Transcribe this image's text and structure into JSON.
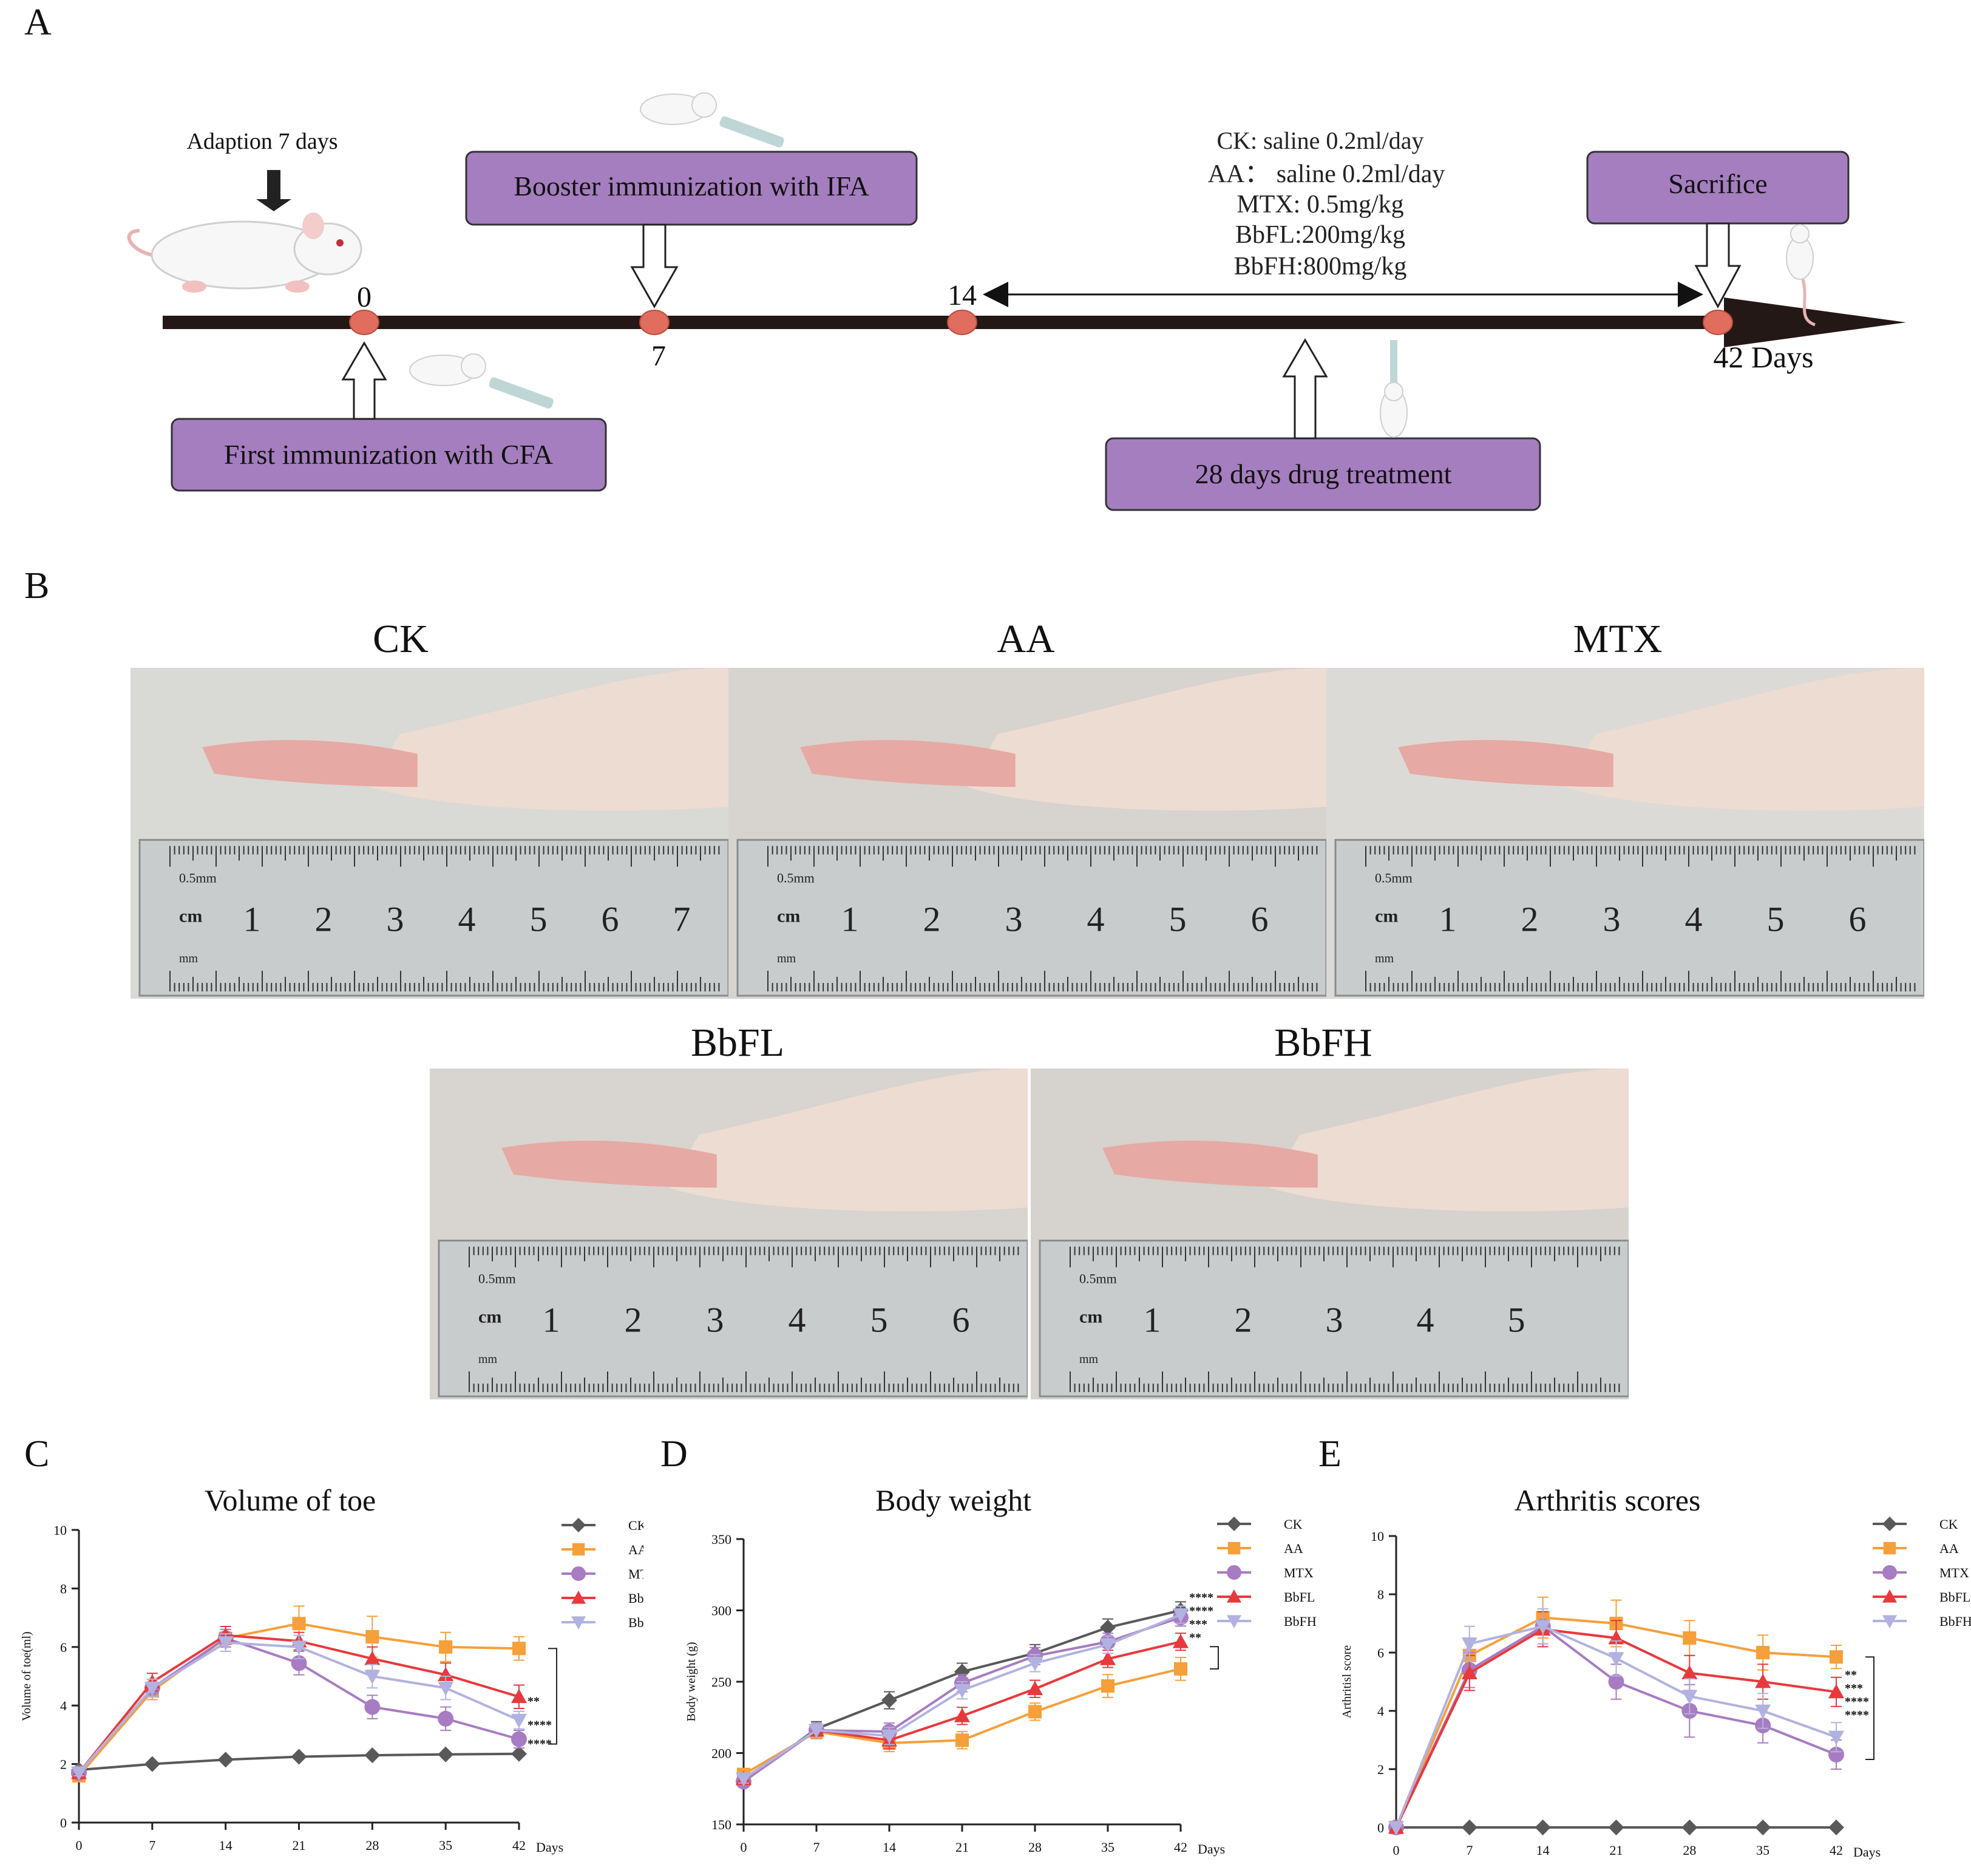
{
  "panels": {
    "A": "A",
    "B": "B",
    "C": "C",
    "D": "D",
    "E": "E"
  },
  "timeline": {
    "adaption": "Adaption 7 days",
    "booster": "Booster immunization with IFA",
    "first": "First immunization with CFA",
    "treatment_box": "28 days drug treatment",
    "sacrifice": "Sacrifice",
    "day0": "0",
    "day7": "7",
    "day14": "14",
    "day42": "42 Days",
    "dosing": [
      "CK: saline 0.2ml/day",
      "AA： saline 0.2ml/day",
      "MTX: 0.5mg/kg",
      "BbFL:200mg/kg",
      "BbFH:800mg/kg"
    ],
    "colors": {
      "box": "#a57ebf",
      "node": "#e06d5e",
      "axis": "#231815"
    }
  },
  "photos": {
    "labels": [
      "CK",
      "AA",
      "MTX",
      "BbFL",
      "BbFH"
    ],
    "ruler": {
      "unit": "cm",
      "small_label": "0.5mm",
      "mm_label": "mm"
    },
    "ruler_numbers": [
      [
        "1",
        "2",
        "3",
        "4",
        "5",
        "6",
        "7"
      ],
      [
        "1",
        "2",
        "3",
        "4",
        "5",
        "6"
      ],
      [
        "1",
        "2",
        "3",
        "4",
        "5",
        "6"
      ],
      [
        "1",
        "2",
        "3",
        "4",
        "5",
        "6"
      ],
      [
        "1",
        "2",
        "3",
        "4",
        "5"
      ]
    ]
  },
  "chart_data": [
    {
      "type": "line",
      "title": "Volume of toe",
      "ylabel": "Volume of toe(ml)",
      "xlabel": "Days",
      "x": [
        0,
        7,
        14,
        21,
        28,
        35,
        42
      ],
      "ylim": [
        0,
        10
      ],
      "yticks": [
        0,
        2,
        4,
        6,
        8,
        10
      ],
      "series": [
        {
          "name": "CK",
          "color": "#595959",
          "marker": "diamond",
          "values": [
            1.8,
            2.0,
            2.15,
            2.25,
            2.3,
            2.33,
            2.35
          ],
          "err": [
            0.05,
            0.05,
            0.05,
            0.05,
            0.05,
            0.05,
            0.05
          ]
        },
        {
          "name": "AA",
          "color": "#f5a03a",
          "marker": "square",
          "values": [
            1.6,
            4.5,
            6.3,
            6.8,
            6.35,
            6.0,
            5.95
          ],
          "err": [
            0.1,
            0.3,
            0.3,
            0.6,
            0.7,
            0.5,
            0.4
          ]
        },
        {
          "name": "MTX",
          "color": "#a77cc2",
          "marker": "circle",
          "values": [
            1.7,
            4.6,
            6.3,
            5.45,
            3.95,
            3.55,
            2.85
          ],
          "err": [
            0.1,
            0.3,
            0.3,
            0.4,
            0.4,
            0.4,
            0.3
          ]
        },
        {
          "name": "BbFL",
          "color": "#e8393d",
          "marker": "triangle",
          "values": [
            1.7,
            4.8,
            6.4,
            6.2,
            5.6,
            5.05,
            4.3
          ],
          "err": [
            0.1,
            0.3,
            0.3,
            0.3,
            0.4,
            0.4,
            0.4
          ]
        },
        {
          "name": "BbFH",
          "color": "#b2b2e0",
          "marker": "invtriangle",
          "values": [
            1.7,
            4.6,
            6.15,
            6.0,
            5.0,
            4.6,
            3.5
          ],
          "err": [
            0.1,
            0.3,
            0.3,
            0.4,
            0.4,
            0.4,
            0.3
          ]
        }
      ],
      "sig": [
        "**",
        "****",
        "****"
      ]
    },
    {
      "type": "line",
      "title": "Body weight",
      "ylabel": "Body weight (g)",
      "xlabel": "Days",
      "x": [
        0,
        7,
        14,
        21,
        28,
        35,
        42
      ],
      "ylim": [
        150,
        350
      ],
      "yticks": [
        150,
        200,
        250,
        300,
        350
      ],
      "series": [
        {
          "name": "CK",
          "color": "#595959",
          "marker": "diamond",
          "values": [
            180,
            217,
            237,
            257,
            270,
            288,
            300
          ],
          "err": [
            3,
            5,
            6,
            6,
            6,
            6,
            6
          ]
        },
        {
          "name": "AA",
          "color": "#f5a03a",
          "marker": "square",
          "values": [
            185,
            215,
            207,
            209,
            229,
            247,
            259
          ],
          "err": [
            3,
            5,
            6,
            6,
            6,
            8,
            8
          ]
        },
        {
          "name": "MTX",
          "color": "#a77cc2",
          "marker": "circle",
          "values": [
            180,
            216,
            215,
            249,
            268,
            278,
            295
          ],
          "err": [
            3,
            5,
            6,
            6,
            6,
            6,
            6
          ]
        },
        {
          "name": "BbFL",
          "color": "#e8393d",
          "marker": "triangle",
          "values": [
            182,
            216,
            209,
            226,
            245,
            266,
            278
          ],
          "err": [
            3,
            5,
            6,
            6,
            6,
            6,
            6
          ]
        },
        {
          "name": "BbFH",
          "color": "#b2b2e0",
          "marker": "invtriangle",
          "values": [
            182,
            216,
            212,
            244,
            263,
            276,
            297
          ],
          "err": [
            3,
            5,
            6,
            6,
            6,
            6,
            6
          ]
        }
      ],
      "sig": [
        "****",
        "****",
        "***",
        "**"
      ]
    },
    {
      "type": "line",
      "title": "Arthritis scores",
      "ylabel": "Arthritisl score",
      "xlabel": "Days",
      "x": [
        0,
        7,
        14,
        21,
        28,
        35,
        42
      ],
      "ylim": [
        0,
        10
      ],
      "yticks": [
        0,
        2,
        4,
        6,
        8,
        10
      ],
      "series": [
        {
          "name": "CK",
          "color": "#595959",
          "marker": "diamond",
          "values": [
            0,
            0,
            0,
            0,
            0,
            0,
            0
          ],
          "err": [
            0,
            0,
            0,
            0,
            0,
            0,
            0
          ]
        },
        {
          "name": "AA",
          "color": "#f5a03a",
          "marker": "square",
          "values": [
            0,
            5.9,
            7.2,
            7.0,
            6.5,
            6.0,
            5.85
          ],
          "err": [
            0,
            0.6,
            0.7,
            0.8,
            0.6,
            0.6,
            0.4
          ]
        },
        {
          "name": "MTX",
          "color": "#a77cc2",
          "marker": "circle",
          "values": [
            0,
            5.4,
            6.9,
            5.0,
            4.0,
            3.5,
            2.5
          ],
          "err": [
            0,
            0.6,
            0.6,
            0.6,
            0.9,
            0.6,
            0.5
          ]
        },
        {
          "name": "BbFL",
          "color": "#e8393d",
          "marker": "triangle",
          "values": [
            0,
            5.3,
            6.8,
            6.5,
            5.3,
            5.0,
            4.65
          ],
          "err": [
            0,
            0.6,
            0.6,
            0.6,
            0.6,
            0.6,
            0.5
          ]
        },
        {
          "name": "BbFH",
          "color": "#b2b2e0",
          "marker": "invtriangle",
          "values": [
            0,
            6.3,
            6.9,
            5.8,
            4.5,
            4.0,
            3.1
          ],
          "err": [
            0,
            0.6,
            0.6,
            0.6,
            0.6,
            0.6,
            0.5
          ]
        }
      ],
      "sig": [
        "**",
        "***",
        "****",
        "****"
      ]
    }
  ]
}
